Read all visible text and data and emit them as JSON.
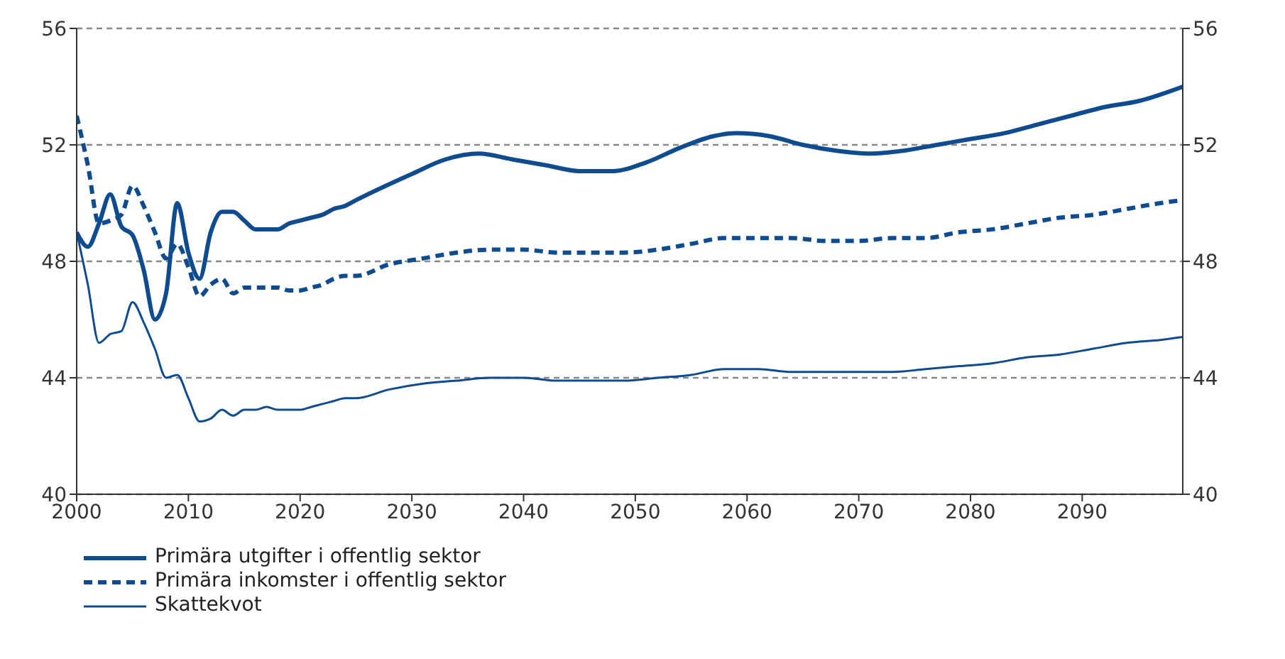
{
  "chart_data": {
    "type": "line",
    "xlim": [
      2000,
      2099
    ],
    "xticks": [
      2000,
      2010,
      2020,
      2030,
      2040,
      2050,
      2060,
      2070,
      2080,
      2090
    ],
    "ylim": [
      40,
      56
    ],
    "yticks": [
      40,
      44,
      48,
      52,
      56
    ],
    "y2lim": [
      40,
      56
    ],
    "y2ticks": [
      40,
      44,
      48,
      52,
      56
    ],
    "grid": "y",
    "legend": "bottom",
    "marker": "none",
    "series": [
      {
        "name": "Primära utgifter i offentlig sektor",
        "color": "#0f4c8f",
        "line_style": "solid",
        "x": [
          2000,
          2001,
          2002,
          2003,
          2004,
          2005,
          2006,
          2007,
          2008,
          2009,
          2010,
          2011,
          2012,
          2013,
          2014,
          2015,
          2016,
          2017,
          2018,
          2019,
          2020,
          2021,
          2022,
          2023,
          2024,
          2025,
          2030,
          2033,
          2036,
          2039,
          2042,
          2045,
          2048,
          2051,
          2054,
          2057,
          2059,
          2062,
          2065,
          2068,
          2071,
          2074,
          2077,
          2080,
          2083,
          2086,
          2089,
          2092,
          2095,
          2099
        ],
        "values": [
          49.0,
          48.5,
          49.3,
          50.3,
          49.2,
          48.9,
          47.7,
          46.0,
          46.9,
          50.0,
          48.3,
          47.4,
          49.0,
          49.7,
          49.7,
          49.4,
          49.1,
          49.1,
          49.1,
          49.3,
          49.4,
          49.5,
          49.6,
          49.8,
          49.9,
          50.1,
          51.0,
          51.5,
          51.7,
          51.5,
          51.3,
          51.1,
          51.1,
          51.4,
          51.9,
          52.3,
          52.4,
          52.3,
          52.0,
          51.8,
          51.7,
          51.8,
          52.0,
          52.2,
          52.4,
          52.7,
          53.0,
          53.3,
          53.5,
          54.0
        ]
      },
      {
        "name": "Primära inkomster i offentlig sektor",
        "color": "#0f4c8f",
        "line_style": "dashed",
        "x": [
          2000,
          2001,
          2002,
          2003,
          2004,
          2005,
          2006,
          2007,
          2008,
          2009,
          2010,
          2011,
          2012,
          2013,
          2014,
          2015,
          2016,
          2017,
          2018,
          2019,
          2020,
          2021,
          2022,
          2023,
          2024,
          2025,
          2028,
          2031,
          2034,
          2037,
          2040,
          2043,
          2046,
          2049,
          2052,
          2055,
          2058,
          2061,
          2064,
          2067,
          2070,
          2073,
          2076,
          2079,
          2082,
          2085,
          2088,
          2091,
          2094,
          2097,
          2099
        ],
        "values": [
          53.0,
          51.3,
          49.3,
          49.4,
          49.6,
          50.6,
          49.9,
          49.0,
          48.1,
          48.6,
          47.8,
          46.8,
          47.2,
          47.4,
          46.9,
          47.1,
          47.1,
          47.1,
          47.1,
          47.0,
          47.0,
          47.1,
          47.2,
          47.4,
          47.5,
          47.5,
          47.9,
          48.1,
          48.3,
          48.4,
          48.4,
          48.3,
          48.3,
          48.3,
          48.4,
          48.6,
          48.8,
          48.8,
          48.8,
          48.7,
          48.7,
          48.8,
          48.8,
          49.0,
          49.1,
          49.3,
          49.5,
          49.6,
          49.8,
          50.0,
          50.1
        ]
      },
      {
        "name": "Skattekvot",
        "color": "#0f4c8f",
        "line_style": "solid",
        "x": [
          2000,
          2001,
          2002,
          2003,
          2004,
          2005,
          2006,
          2007,
          2008,
          2009,
          2010,
          2011,
          2012,
          2013,
          2014,
          2015,
          2016,
          2017,
          2018,
          2019,
          2020,
          2021,
          2022,
          2023,
          2024,
          2025,
          2028,
          2031,
          2034,
          2037,
          2040,
          2043,
          2046,
          2049,
          2052,
          2055,
          2058,
          2061,
          2064,
          2067,
          2070,
          2073,
          2076,
          2079,
          2082,
          2085,
          2088,
          2091,
          2094,
          2097,
          2099
        ],
        "values": [
          49.0,
          47.2,
          45.2,
          45.5,
          45.6,
          46.6,
          45.9,
          45.0,
          44.0,
          44.1,
          43.3,
          42.5,
          42.6,
          42.9,
          42.7,
          42.9,
          42.9,
          43.0,
          42.9,
          42.9,
          42.9,
          43.0,
          43.1,
          43.2,
          43.3,
          43.3,
          43.6,
          43.8,
          43.9,
          44.0,
          44.0,
          43.9,
          43.9,
          43.9,
          44.0,
          44.1,
          44.3,
          44.3,
          44.2,
          44.2,
          44.2,
          44.2,
          44.3,
          44.4,
          44.5,
          44.7,
          44.8,
          45.0,
          45.2,
          45.3,
          45.4
        ]
      }
    ]
  }
}
